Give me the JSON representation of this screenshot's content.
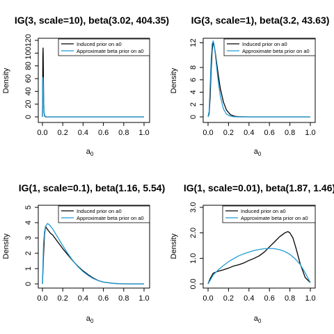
{
  "chart_data": [
    {
      "type": "line",
      "title": "IG(3, scale=10), beta(3.02, 404.35)",
      "xlabel_main": "a",
      "xlabel_sub": "0",
      "ylabel": "Density",
      "xlim": [
        0,
        1
      ],
      "ylim": [
        0,
        120
      ],
      "xticks": [
        "0.0",
        "0.2",
        "0.4",
        "0.6",
        "0.8",
        "1.0"
      ],
      "yticks": [
        "0",
        "20",
        "40",
        "60",
        "80",
        "100",
        "120"
      ],
      "ytick_values": [
        0,
        20,
        40,
        60,
        80,
        100,
        120
      ],
      "legend_position": "top-right",
      "series": [
        {
          "name": "Induced prior on a0",
          "color": "#000000",
          "x": [
            0,
            0.002,
            0.004,
            0.006,
            0.008,
            0.01,
            0.012,
            0.015,
            0.02,
            0.03,
            0.04,
            1.0
          ],
          "y": [
            0,
            40,
            95,
            108,
            85,
            48,
            22,
            8,
            2,
            0,
            0,
            0
          ]
        },
        {
          "name": "Approximate beta prior on a0",
          "color": "#1f9bd7",
          "x": [
            0,
            0.002,
            0.004,
            0.006,
            0.008,
            0.01,
            0.012,
            0.015,
            0.02,
            0.03,
            0.04,
            1.0
          ],
          "y": [
            0,
            42,
            62,
            60,
            48,
            34,
            22,
            10,
            3,
            0.5,
            0,
            0
          ]
        }
      ]
    },
    {
      "type": "line",
      "title": "IG(3, scale=1), beta(3.2, 43.63)",
      "xlabel_main": "a",
      "xlabel_sub": "0",
      "ylabel": "Density",
      "xlim": [
        0,
        1
      ],
      "ylim": [
        0,
        12.5
      ],
      "xticks": [
        "0.0",
        "0.2",
        "0.4",
        "0.6",
        "0.8",
        "1.0"
      ],
      "yticks": [
        "0",
        "2",
        "4",
        "6",
        "8",
        "12"
      ],
      "ytick_values": [
        0,
        2,
        4,
        6,
        8,
        12
      ],
      "legend_position": "top-right",
      "series": [
        {
          "name": "Induced prior on a0",
          "color": "#000000",
          "x": [
            0,
            0.01,
            0.02,
            0.03,
            0.04,
            0.05,
            0.06,
            0.07,
            0.08,
            0.1,
            0.12,
            0.15,
            0.18,
            0.22,
            0.26,
            0.3,
            0.4,
            1.0
          ],
          "y": [
            0,
            0.5,
            3,
            7.5,
            10.8,
            12.1,
            11.5,
            10.5,
            9.2,
            6.8,
            4.6,
            2.4,
            1.1,
            0.35,
            0.1,
            0.03,
            0,
            0
          ]
        },
        {
          "name": "Approximate beta prior on a0",
          "color": "#1f9bd7",
          "x": [
            0,
            0.01,
            0.02,
            0.03,
            0.04,
            0.05,
            0.06,
            0.07,
            0.08,
            0.1,
            0.12,
            0.15,
            0.18,
            0.22,
            0.26,
            0.3,
            0.4,
            1.0
          ],
          "y": [
            0,
            0.9,
            4.8,
            9.2,
            11.8,
            12.3,
            11.6,
            10.2,
            8.6,
            5.7,
            3.4,
            1.3,
            0.45,
            0.1,
            0.02,
            0,
            0,
            0
          ]
        }
      ]
    },
    {
      "type": "line",
      "title": "IG(1, scale=0.1), beta(1.16, 5.54)",
      "xlabel_main": "a",
      "xlabel_sub": "0",
      "ylabel": "Density",
      "xlim": [
        0,
        1
      ],
      "ylim": [
        0,
        5
      ],
      "xticks": [
        "0.0",
        "0.2",
        "0.4",
        "0.6",
        "0.8",
        "1.0"
      ],
      "yticks": [
        "0",
        "1",
        "2",
        "3",
        "4",
        "5"
      ],
      "ytick_values": [
        0,
        1,
        2,
        3,
        4,
        5
      ],
      "legend_position": "top-right",
      "series": [
        {
          "name": "Induced prior on a0",
          "color": "#000000",
          "x": [
            0,
            0.01,
            0.02,
            0.03,
            0.05,
            0.08,
            0.1,
            0.15,
            0.2,
            0.25,
            0.3,
            0.35,
            0.4,
            0.45,
            0.5,
            0.55,
            0.6,
            0.7,
            0.8,
            0.9,
            1.0
          ],
          "y": [
            0,
            1.8,
            3.2,
            3.75,
            3.55,
            3.3,
            3.2,
            2.75,
            2.3,
            1.9,
            1.5,
            1.15,
            0.85,
            0.6,
            0.38,
            0.22,
            0.12,
            0.03,
            0,
            0,
            0
          ]
        },
        {
          "name": "Approximate beta prior on a0",
          "color": "#1f9bd7",
          "x": [
            0,
            0.01,
            0.02,
            0.03,
            0.05,
            0.07,
            0.1,
            0.15,
            0.2,
            0.25,
            0.3,
            0.35,
            0.4,
            0.45,
            0.5,
            0.55,
            0.6,
            0.7,
            0.8,
            0.9,
            1.0
          ],
          "y": [
            0,
            2.6,
            3.4,
            3.75,
            3.95,
            3.85,
            3.6,
            3.05,
            2.5,
            1.98,
            1.52,
            1.12,
            0.8,
            0.55,
            0.35,
            0.21,
            0.12,
            0.03,
            0.005,
            0,
            0
          ]
        }
      ]
    },
    {
      "type": "line",
      "title": "IG(1, scale=0.01), beta(1.87, 1.46)",
      "xlabel_main": "a",
      "xlabel_sub": "0",
      "ylabel": "Density",
      "xlim": [
        0,
        1
      ],
      "ylim": [
        0,
        3
      ],
      "xticks": [
        "0.0",
        "0.2",
        "0.4",
        "0.6",
        "0.8",
        "1.0"
      ],
      "yticks": [
        "0.0",
        "1.0",
        "2.0",
        "3.0"
      ],
      "ytick_values": [
        0,
        1,
        2,
        3
      ],
      "legend_position": "top-right",
      "series": [
        {
          "name": "Induced prior on a0",
          "color": "#000000",
          "x": [
            0,
            0.02,
            0.05,
            0.1,
            0.15,
            0.2,
            0.25,
            0.3,
            0.35,
            0.4,
            0.45,
            0.5,
            0.55,
            0.6,
            0.65,
            0.7,
            0.75,
            0.78,
            0.8,
            0.83,
            0.86,
            0.9,
            0.95,
            1.0
          ],
          "y": [
            0,
            0.2,
            0.42,
            0.5,
            0.55,
            0.62,
            0.7,
            0.75,
            0.82,
            0.92,
            1.0,
            1.1,
            1.25,
            1.45,
            1.65,
            1.85,
            2.0,
            2.05,
            2.0,
            1.8,
            1.4,
            0.8,
            0.25,
            0.05
          ]
        },
        {
          "name": "Approximate beta prior on a0",
          "color": "#1f9bd7",
          "x": [
            0,
            0.05,
            0.1,
            0.15,
            0.2,
            0.25,
            0.3,
            0.35,
            0.4,
            0.45,
            0.5,
            0.55,
            0.6,
            0.65,
            0.7,
            0.75,
            0.8,
            0.85,
            0.9,
            0.95,
            1.0
          ],
          "y": [
            0,
            0.35,
            0.55,
            0.72,
            0.87,
            0.99,
            1.1,
            1.18,
            1.25,
            1.31,
            1.35,
            1.38,
            1.39,
            1.38,
            1.34,
            1.27,
            1.16,
            0.99,
            0.77,
            0.43,
            0.05
          ]
        }
      ]
    }
  ]
}
